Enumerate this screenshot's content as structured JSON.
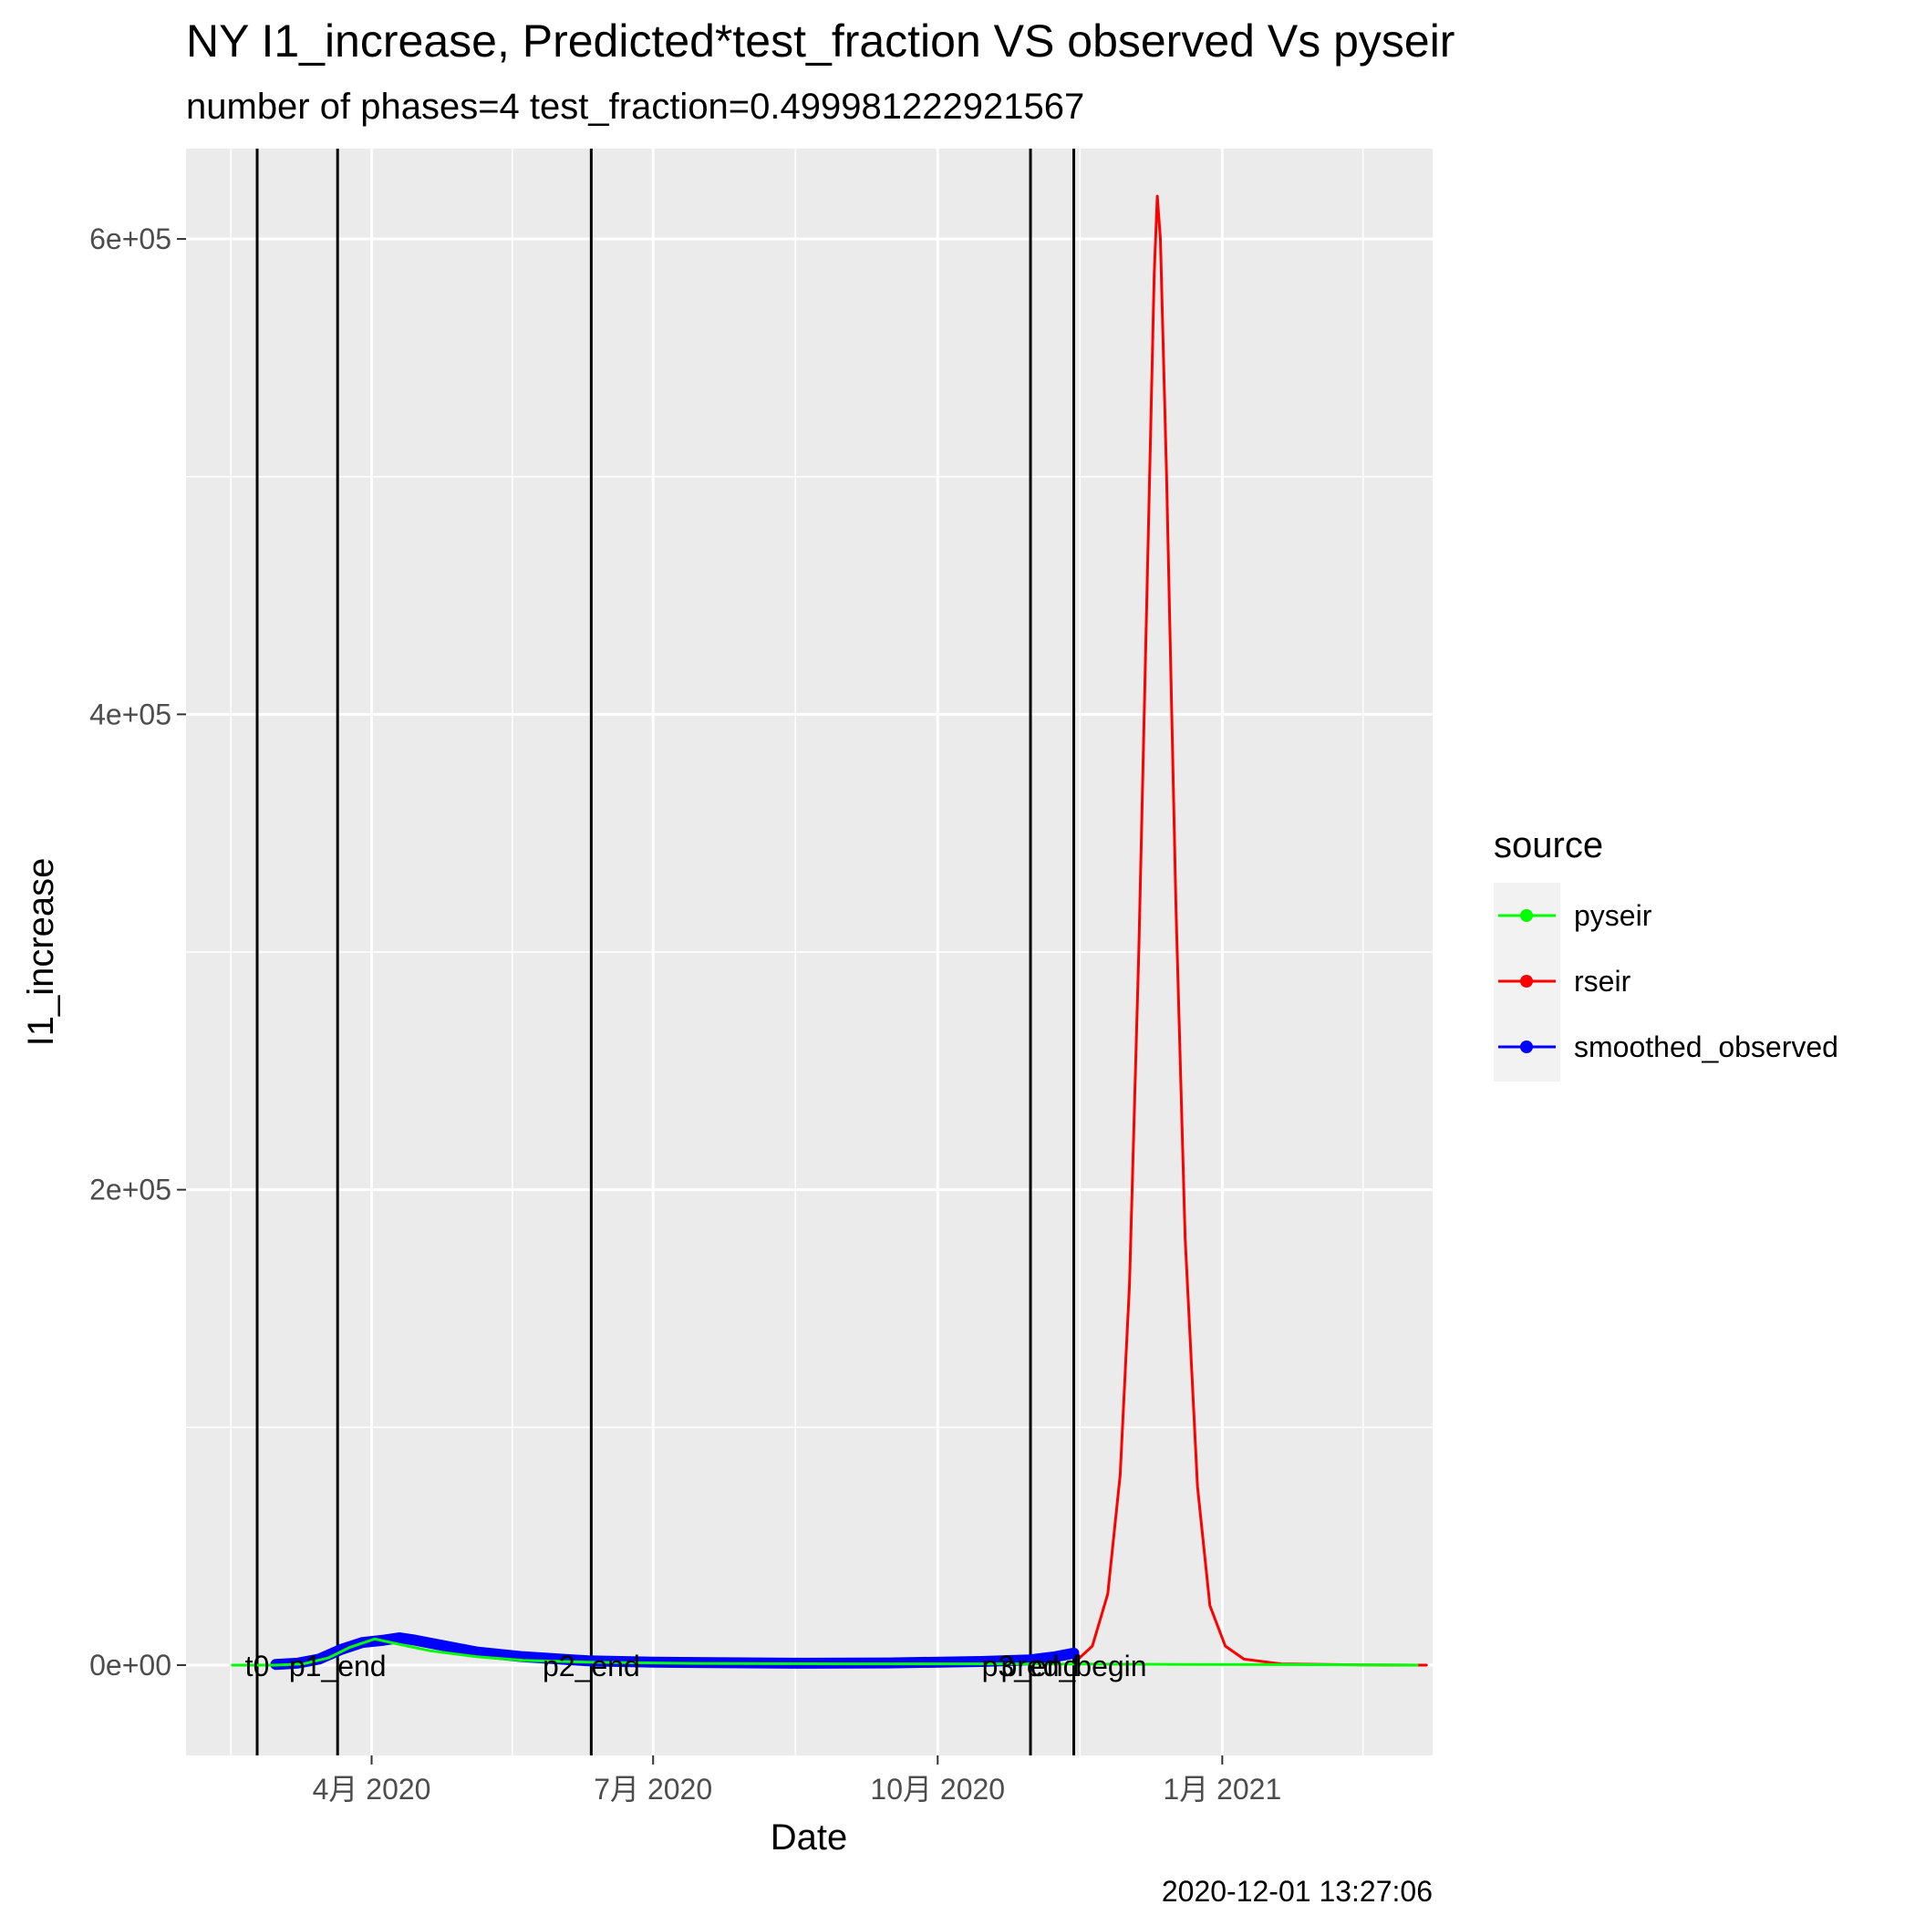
{
  "chart_data": {
    "type": "line",
    "title": "NY I1_increase, Predicted*test_fraction VS observed Vs pyseir",
    "subtitle": "number of phases=4   test_fraction=0.499981222921567",
    "xlabel": "Date",
    "ylabel": "I1_increase",
    "caption": "2020-12-01 13:27:06",
    "xlim": [
      "2020-02-01",
      "2021-03-10"
    ],
    "ylim": [
      -38000,
      638000
    ],
    "x_ticks": [
      {
        "date": "2020-04-01",
        "label": "4月 2020"
      },
      {
        "date": "2020-07-01",
        "label": "7月 2020"
      },
      {
        "date": "2020-10-01",
        "label": "10月 2020"
      },
      {
        "date": "2021-01-01",
        "label": "1月 2021"
      }
    ],
    "y_ticks": [
      {
        "value": 0,
        "label": "0e+00"
      },
      {
        "value": 200000,
        "label": "2e+05"
      },
      {
        "value": 400000,
        "label": "4e+05"
      },
      {
        "value": 600000,
        "label": "6e+05"
      }
    ],
    "grid": true,
    "legend": {
      "title": "source",
      "position": "right"
    },
    "series": [
      {
        "name": "pyseir",
        "color": "#00ff00",
        "points": [
          [
            "2020-02-16",
            0
          ],
          [
            "2020-03-01",
            0
          ],
          [
            "2020-03-10",
            500
          ],
          [
            "2020-03-18",
            3000
          ],
          [
            "2020-03-25",
            7500
          ],
          [
            "2020-04-02",
            11000
          ],
          [
            "2020-04-09",
            9000
          ],
          [
            "2020-04-20",
            6000
          ],
          [
            "2020-05-05",
            3500
          ],
          [
            "2020-05-20",
            2000
          ],
          [
            "2020-06-10",
            1200
          ],
          [
            "2020-07-15",
            700
          ],
          [
            "2020-09-01",
            500
          ],
          [
            "2020-10-25",
            500
          ],
          [
            "2020-11-20",
            400
          ],
          [
            "2020-12-20",
            300
          ],
          [
            "2021-01-20",
            200
          ],
          [
            "2021-02-20",
            100
          ],
          [
            "2021-03-05",
            0
          ]
        ]
      },
      {
        "name": "rseir",
        "color": "#ff0000",
        "points": [
          [
            "2020-11-15",
            2000
          ],
          [
            "2020-11-20",
            8000
          ],
          [
            "2020-11-25",
            30000
          ],
          [
            "2020-11-29",
            80000
          ],
          [
            "2020-12-02",
            160000
          ],
          [
            "2020-12-05",
            300000
          ],
          [
            "2020-12-08",
            470000
          ],
          [
            "2020-12-10",
            585000
          ],
          [
            "2020-12-11",
            618000
          ],
          [
            "2020-12-12",
            600000
          ],
          [
            "2020-12-14",
            500000
          ],
          [
            "2020-12-17",
            320000
          ],
          [
            "2020-12-20",
            180000
          ],
          [
            "2020-12-24",
            75000
          ],
          [
            "2020-12-28",
            25000
          ],
          [
            "2021-01-02",
            8000
          ],
          [
            "2021-01-08",
            2500
          ],
          [
            "2021-01-20",
            500
          ],
          [
            "2021-02-15",
            100
          ],
          [
            "2021-03-08",
            0
          ]
        ]
      },
      {
        "name": "smoothed_observed",
        "color": "#0000ff",
        "points": [
          [
            "2020-03-01",
            300
          ],
          [
            "2020-03-08",
            800
          ],
          [
            "2020-03-15",
            2500
          ],
          [
            "2020-03-22",
            6500
          ],
          [
            "2020-03-29",
            9500
          ],
          [
            "2020-04-05",
            10500
          ],
          [
            "2020-04-10",
            11500
          ],
          [
            "2020-04-15",
            10500
          ],
          [
            "2020-04-25",
            8000
          ],
          [
            "2020-05-05",
            5500
          ],
          [
            "2020-05-20",
            3500
          ],
          [
            "2020-06-10",
            1800
          ],
          [
            "2020-07-01",
            1200
          ],
          [
            "2020-08-15",
            800
          ],
          [
            "2020-09-15",
            900
          ],
          [
            "2020-10-15",
            1500
          ],
          [
            "2020-10-31",
            2200
          ],
          [
            "2020-11-08",
            3500
          ],
          [
            "2020-11-14",
            5000
          ]
        ]
      }
    ],
    "vlines": [
      {
        "label": "t0",
        "date": "2020-02-24"
      },
      {
        "label": "p1_end",
        "date": "2020-03-21"
      },
      {
        "label": "p2_end",
        "date": "2020-06-11"
      },
      {
        "label": "p3_end",
        "date": "2020-10-31"
      },
      {
        "label": "pred_begin",
        "date": "2020-11-14"
      }
    ]
  }
}
